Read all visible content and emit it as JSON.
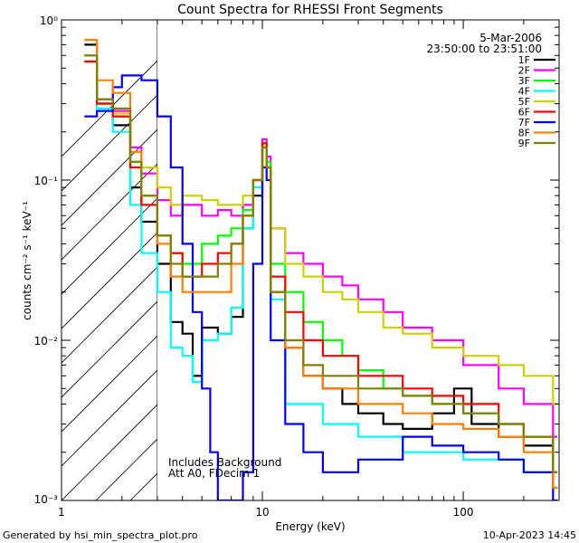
{
  "chart_data": {
    "type": "line",
    "title": "Count Spectra for RHESSI Front Segments",
    "xlabel": "Energy (keV)",
    "ylabel": "counts cm⁻² s⁻¹ keV⁻¹",
    "xscale": "log",
    "yscale": "log",
    "xlim": [
      1.0,
      300.0
    ],
    "ylim": [
      0.001,
      1.0
    ],
    "x_tick_labels": [
      "1",
      "10",
      "100"
    ],
    "y_tick_labels": [
      "10⁰",
      "10⁻¹",
      "10⁻²",
      "10⁻³"
    ],
    "shaded_region": {
      "x_from": 1.0,
      "x_to": 3.0,
      "style": "diagonal-hatch"
    },
    "header_date": "5-Mar-2006",
    "header_time_range": "23:50:00 to 23:51:00",
    "annotations": [
      "Includes Background",
      "Att A0, FDecim 1"
    ],
    "series": [
      {
        "name": "1F",
        "color": "#000000",
        "points": [
          [
            1.3,
            0.7
          ],
          [
            1.5,
            0.3
          ],
          [
            1.8,
            0.22
          ],
          [
            2.2,
            0.09
          ],
          [
            2.5,
            0.055
          ],
          [
            3.0,
            0.03
          ],
          [
            3.5,
            0.013
          ],
          [
            4.0,
            0.011
          ],
          [
            4.5,
            0.006
          ],
          [
            5.0,
            0.012
          ],
          [
            6.0,
            0.011
          ],
          [
            7.0,
            0.014
          ],
          [
            8.0,
            0.05
          ],
          [
            9.0,
            0.08
          ],
          [
            10.0,
            0.17
          ],
          [
            10.5,
            0.12
          ],
          [
            11.0,
            0.02
          ],
          [
            13.0,
            0.009
          ],
          [
            16.0,
            0.006
          ],
          [
            20.0,
            0.005
          ],
          [
            25.0,
            0.004
          ],
          [
            30.0,
            0.0035
          ],
          [
            40.0,
            0.003
          ],
          [
            50.0,
            0.0028
          ],
          [
            70.0,
            0.0035
          ],
          [
            90.0,
            0.005
          ],
          [
            110.0,
            0.003
          ],
          [
            150.0,
            0.0025
          ],
          [
            200.0,
            0.0022
          ],
          [
            280.0,
            0.0012
          ]
        ]
      },
      {
        "name": "2F",
        "color": "#ff00ff",
        "points": [
          [
            1.3,
            0.55
          ],
          [
            1.5,
            0.32
          ],
          [
            1.8,
            0.27
          ],
          [
            2.2,
            0.16
          ],
          [
            2.5,
            0.11
          ],
          [
            3.0,
            0.075
          ],
          [
            3.5,
            0.06
          ],
          [
            4.0,
            0.07
          ],
          [
            5.0,
            0.06
          ],
          [
            6.0,
            0.065
          ],
          [
            7.0,
            0.06
          ],
          [
            8.0,
            0.07
          ],
          [
            9.0,
            0.1
          ],
          [
            10.0,
            0.18
          ],
          [
            10.5,
            0.14
          ],
          [
            11.0,
            0.05
          ],
          [
            13.0,
            0.035
          ],
          [
            16.0,
            0.03
          ],
          [
            20.0,
            0.025
          ],
          [
            25.0,
            0.022
          ],
          [
            30.0,
            0.018
          ],
          [
            40.0,
            0.015
          ],
          [
            50.0,
            0.012
          ],
          [
            70.0,
            0.01
          ],
          [
            100.0,
            0.007
          ],
          [
            150.0,
            0.005
          ],
          [
            200.0,
            0.004
          ],
          [
            280.0,
            0.0025
          ]
        ]
      },
      {
        "name": "3F",
        "color": "#00ff00",
        "points": [
          [
            1.3,
            0.55
          ],
          [
            1.5,
            0.3
          ],
          [
            1.8,
            0.25
          ],
          [
            2.2,
            0.13
          ],
          [
            2.5,
            0.08
          ],
          [
            3.0,
            0.045
          ],
          [
            3.5,
            0.035
          ],
          [
            4.0,
            0.03
          ],
          [
            5.0,
            0.04
          ],
          [
            6.0,
            0.045
          ],
          [
            7.0,
            0.05
          ],
          [
            8.0,
            0.065
          ],
          [
            9.0,
            0.1
          ],
          [
            10.0,
            0.17
          ],
          [
            10.5,
            0.13
          ],
          [
            11.0,
            0.03
          ],
          [
            13.0,
            0.02
          ],
          [
            16.0,
            0.013
          ],
          [
            20.0,
            0.01
          ],
          [
            25.0,
            0.008
          ],
          [
            30.0,
            0.0065
          ],
          [
            40.0,
            0.005
          ],
          [
            50.0,
            0.0045
          ],
          [
            70.0,
            0.004
          ],
          [
            100.0,
            0.0035
          ],
          [
            150.0,
            0.003
          ],
          [
            200.0,
            0.0025
          ],
          [
            280.0,
            0.0015
          ]
        ]
      },
      {
        "name": "4F",
        "color": "#00ffff",
        "points": [
          [
            1.3,
            0.6
          ],
          [
            1.5,
            0.28
          ],
          [
            1.8,
            0.2
          ],
          [
            2.2,
            0.07
          ],
          [
            2.5,
            0.035
          ],
          [
            3.0,
            0.02
          ],
          [
            3.5,
            0.009
          ],
          [
            4.0,
            0.008
          ],
          [
            4.5,
            0.0055
          ],
          [
            5.0,
            0.01
          ],
          [
            6.0,
            0.011
          ],
          [
            7.0,
            0.016
          ],
          [
            8.0,
            0.05
          ],
          [
            9.0,
            0.09
          ],
          [
            10.0,
            0.17
          ],
          [
            10.5,
            0.12
          ],
          [
            11.0,
            0.018
          ],
          [
            13.0,
            0.004
          ],
          [
            16.0,
            0.004
          ],
          [
            20.0,
            0.003
          ],
          [
            30.0,
            0.0025
          ],
          [
            50.0,
            0.002
          ],
          [
            100.0,
            0.0018
          ],
          [
            200.0,
            0.0015
          ],
          [
            280.0,
            0.0012
          ]
        ]
      },
      {
        "name": "5F",
        "color": "#d0d000",
        "points": [
          [
            1.3,
            0.6
          ],
          [
            1.5,
            0.3
          ],
          [
            1.8,
            0.26
          ],
          [
            2.2,
            0.15
          ],
          [
            2.5,
            0.12
          ],
          [
            3.0,
            0.09
          ],
          [
            3.5,
            0.07
          ],
          [
            4.0,
            0.08
          ],
          [
            5.0,
            0.075
          ],
          [
            6.0,
            0.07
          ],
          [
            7.0,
            0.07
          ],
          [
            8.0,
            0.08
          ],
          [
            9.0,
            0.1
          ],
          [
            10.0,
            0.16
          ],
          [
            10.5,
            0.12
          ],
          [
            11.0,
            0.05
          ],
          [
            13.0,
            0.03
          ],
          [
            16.0,
            0.025
          ],
          [
            20.0,
            0.02
          ],
          [
            25.0,
            0.018
          ],
          [
            30.0,
            0.015
          ],
          [
            40.0,
            0.012
          ],
          [
            50.0,
            0.011
          ],
          [
            70.0,
            0.009
          ],
          [
            100.0,
            0.008
          ],
          [
            150.0,
            0.007
          ],
          [
            200.0,
            0.006
          ],
          [
            280.0,
            0.004
          ]
        ]
      },
      {
        "name": "6F",
        "color": "#ff0000",
        "points": [
          [
            1.3,
            0.55
          ],
          [
            1.5,
            0.3
          ],
          [
            1.8,
            0.25
          ],
          [
            2.2,
            0.12
          ],
          [
            2.5,
            0.07
          ],
          [
            3.0,
            0.045
          ],
          [
            3.5,
            0.035
          ],
          [
            4.0,
            0.025
          ],
          [
            5.0,
            0.03
          ],
          [
            6.0,
            0.035
          ],
          [
            7.0,
            0.04
          ],
          [
            8.0,
            0.06
          ],
          [
            9.0,
            0.1
          ],
          [
            10.0,
            0.17
          ],
          [
            10.5,
            0.12
          ],
          [
            11.0,
            0.025
          ],
          [
            13.0,
            0.015
          ],
          [
            16.0,
            0.01
          ],
          [
            20.0,
            0.008
          ],
          [
            30.0,
            0.006
          ],
          [
            50.0,
            0.005
          ],
          [
            70.0,
            0.0045
          ],
          [
            100.0,
            0.004
          ],
          [
            150.0,
            0.003
          ],
          [
            200.0,
            0.0025
          ],
          [
            280.0,
            0.0015
          ]
        ]
      },
      {
        "name": "7F",
        "color": "#0000ff",
        "points": [
          [
            1.3,
            0.25
          ],
          [
            1.5,
            0.27
          ],
          [
            1.8,
            0.38
          ],
          [
            2.0,
            0.45
          ],
          [
            2.5,
            0.42
          ],
          [
            3.0,
            0.25
          ],
          [
            3.5,
            0.12
          ],
          [
            4.0,
            0.04
          ],
          [
            4.5,
            0.015
          ],
          [
            5.0,
            0.005
          ],
          [
            5.5,
            0.002
          ],
          [
            6.0,
            0.001
          ],
          [
            7.0,
            0.001
          ],
          [
            8.0,
            0.0015
          ],
          [
            9.0,
            0.03
          ],
          [
            10.0,
            0.12
          ],
          [
            10.5,
            0.1
          ],
          [
            11.0,
            0.01
          ],
          [
            13.0,
            0.003
          ],
          [
            16.0,
            0.002
          ],
          [
            20.0,
            0.0015
          ],
          [
            30.0,
            0.0018
          ],
          [
            50.0,
            0.0025
          ],
          [
            70.0,
            0.0022
          ],
          [
            100.0,
            0.002
          ],
          [
            150.0,
            0.0018
          ],
          [
            200.0,
            0.0015
          ],
          [
            280.0,
            0.001
          ]
        ]
      },
      {
        "name": "8F",
        "color": "#ff8000",
        "points": [
          [
            1.3,
            0.75
          ],
          [
            1.5,
            0.42
          ],
          [
            1.8,
            0.35
          ],
          [
            2.2,
            0.15
          ],
          [
            2.5,
            0.08
          ],
          [
            3.0,
            0.04
          ],
          [
            3.5,
            0.025
          ],
          [
            4.0,
            0.02
          ],
          [
            5.0,
            0.02
          ],
          [
            6.0,
            0.02
          ],
          [
            7.0,
            0.03
          ],
          [
            8.0,
            0.06
          ],
          [
            9.0,
            0.1
          ],
          [
            10.0,
            0.16
          ],
          [
            10.5,
            0.12
          ],
          [
            11.0,
            0.02
          ],
          [
            13.0,
            0.009
          ],
          [
            16.0,
            0.006
          ],
          [
            20.0,
            0.005
          ],
          [
            30.0,
            0.004
          ],
          [
            50.0,
            0.0035
          ],
          [
            70.0,
            0.003
          ],
          [
            100.0,
            0.0028
          ],
          [
            150.0,
            0.0025
          ],
          [
            200.0,
            0.002
          ],
          [
            280.0,
            0.0012
          ]
        ]
      },
      {
        "name": "9F",
        "color": "#808000",
        "points": [
          [
            1.3,
            0.6
          ],
          [
            1.5,
            0.32
          ],
          [
            1.8,
            0.28
          ],
          [
            2.2,
            0.13
          ],
          [
            2.5,
            0.08
          ],
          [
            3.0,
            0.045
          ],
          [
            3.5,
            0.03
          ],
          [
            4.0,
            0.025
          ],
          [
            5.0,
            0.025
          ],
          [
            6.0,
            0.03
          ],
          [
            7.0,
            0.04
          ],
          [
            8.0,
            0.06
          ],
          [
            9.0,
            0.1
          ],
          [
            10.0,
            0.16
          ],
          [
            10.5,
            0.12
          ],
          [
            11.0,
            0.02
          ],
          [
            13.0,
            0.01
          ],
          [
            16.0,
            0.007
          ],
          [
            20.0,
            0.006
          ],
          [
            30.0,
            0.005
          ],
          [
            50.0,
            0.0045
          ],
          [
            70.0,
            0.004
          ],
          [
            100.0,
            0.0035
          ],
          [
            150.0,
            0.003
          ],
          [
            200.0,
            0.0025
          ],
          [
            280.0,
            0.0015
          ]
        ]
      }
    ]
  },
  "footer": {
    "left": "Generated by hsi_min_spectra_plot.pro",
    "right": "10-Apr-2023 14:45"
  }
}
